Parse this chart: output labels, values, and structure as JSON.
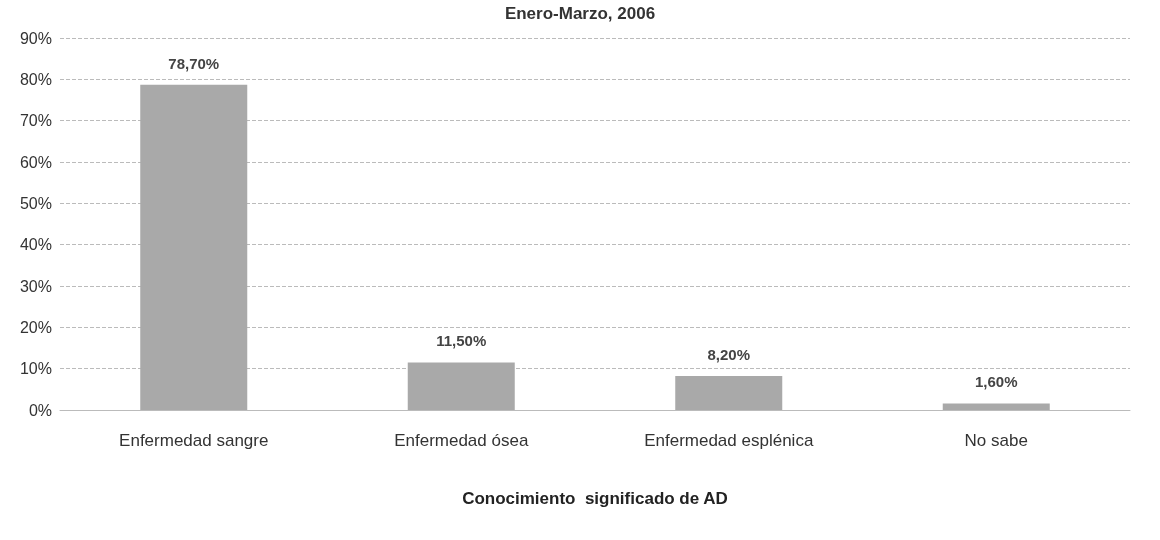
{
  "chart_data": {
    "type": "bar",
    "title": "Enero-Marzo, 2006",
    "xlabel": "Conocimiento  significado de AD",
    "categories": [
      "Enfermedad sangre",
      "Enfermedad ósea",
      "Enfermedad esplénica",
      "No sabe"
    ],
    "values": [
      78.7,
      11.5,
      8.2,
      1.6
    ],
    "value_labels": [
      "78,70%",
      "11,50%",
      "8,20%",
      "1,60%"
    ],
    "color": "#a9a9a9",
    "ylim": [
      0,
      90
    ],
    "yticks": [
      {
        "value": 0,
        "label": "0%"
      },
      {
        "value": 10,
        "label": "10%"
      },
      {
        "value": 20,
        "label": "20%"
      },
      {
        "value": 30,
        "label": "30%"
      },
      {
        "value": 40,
        "label": "40%"
      },
      {
        "value": 50,
        "label": "50%"
      },
      {
        "value": 60,
        "label": "60%"
      },
      {
        "value": 70,
        "label": "70%"
      },
      {
        "value": 80,
        "label": "80%"
      },
      {
        "value": 90,
        "label": "90%"
      }
    ],
    "grid": true
  }
}
